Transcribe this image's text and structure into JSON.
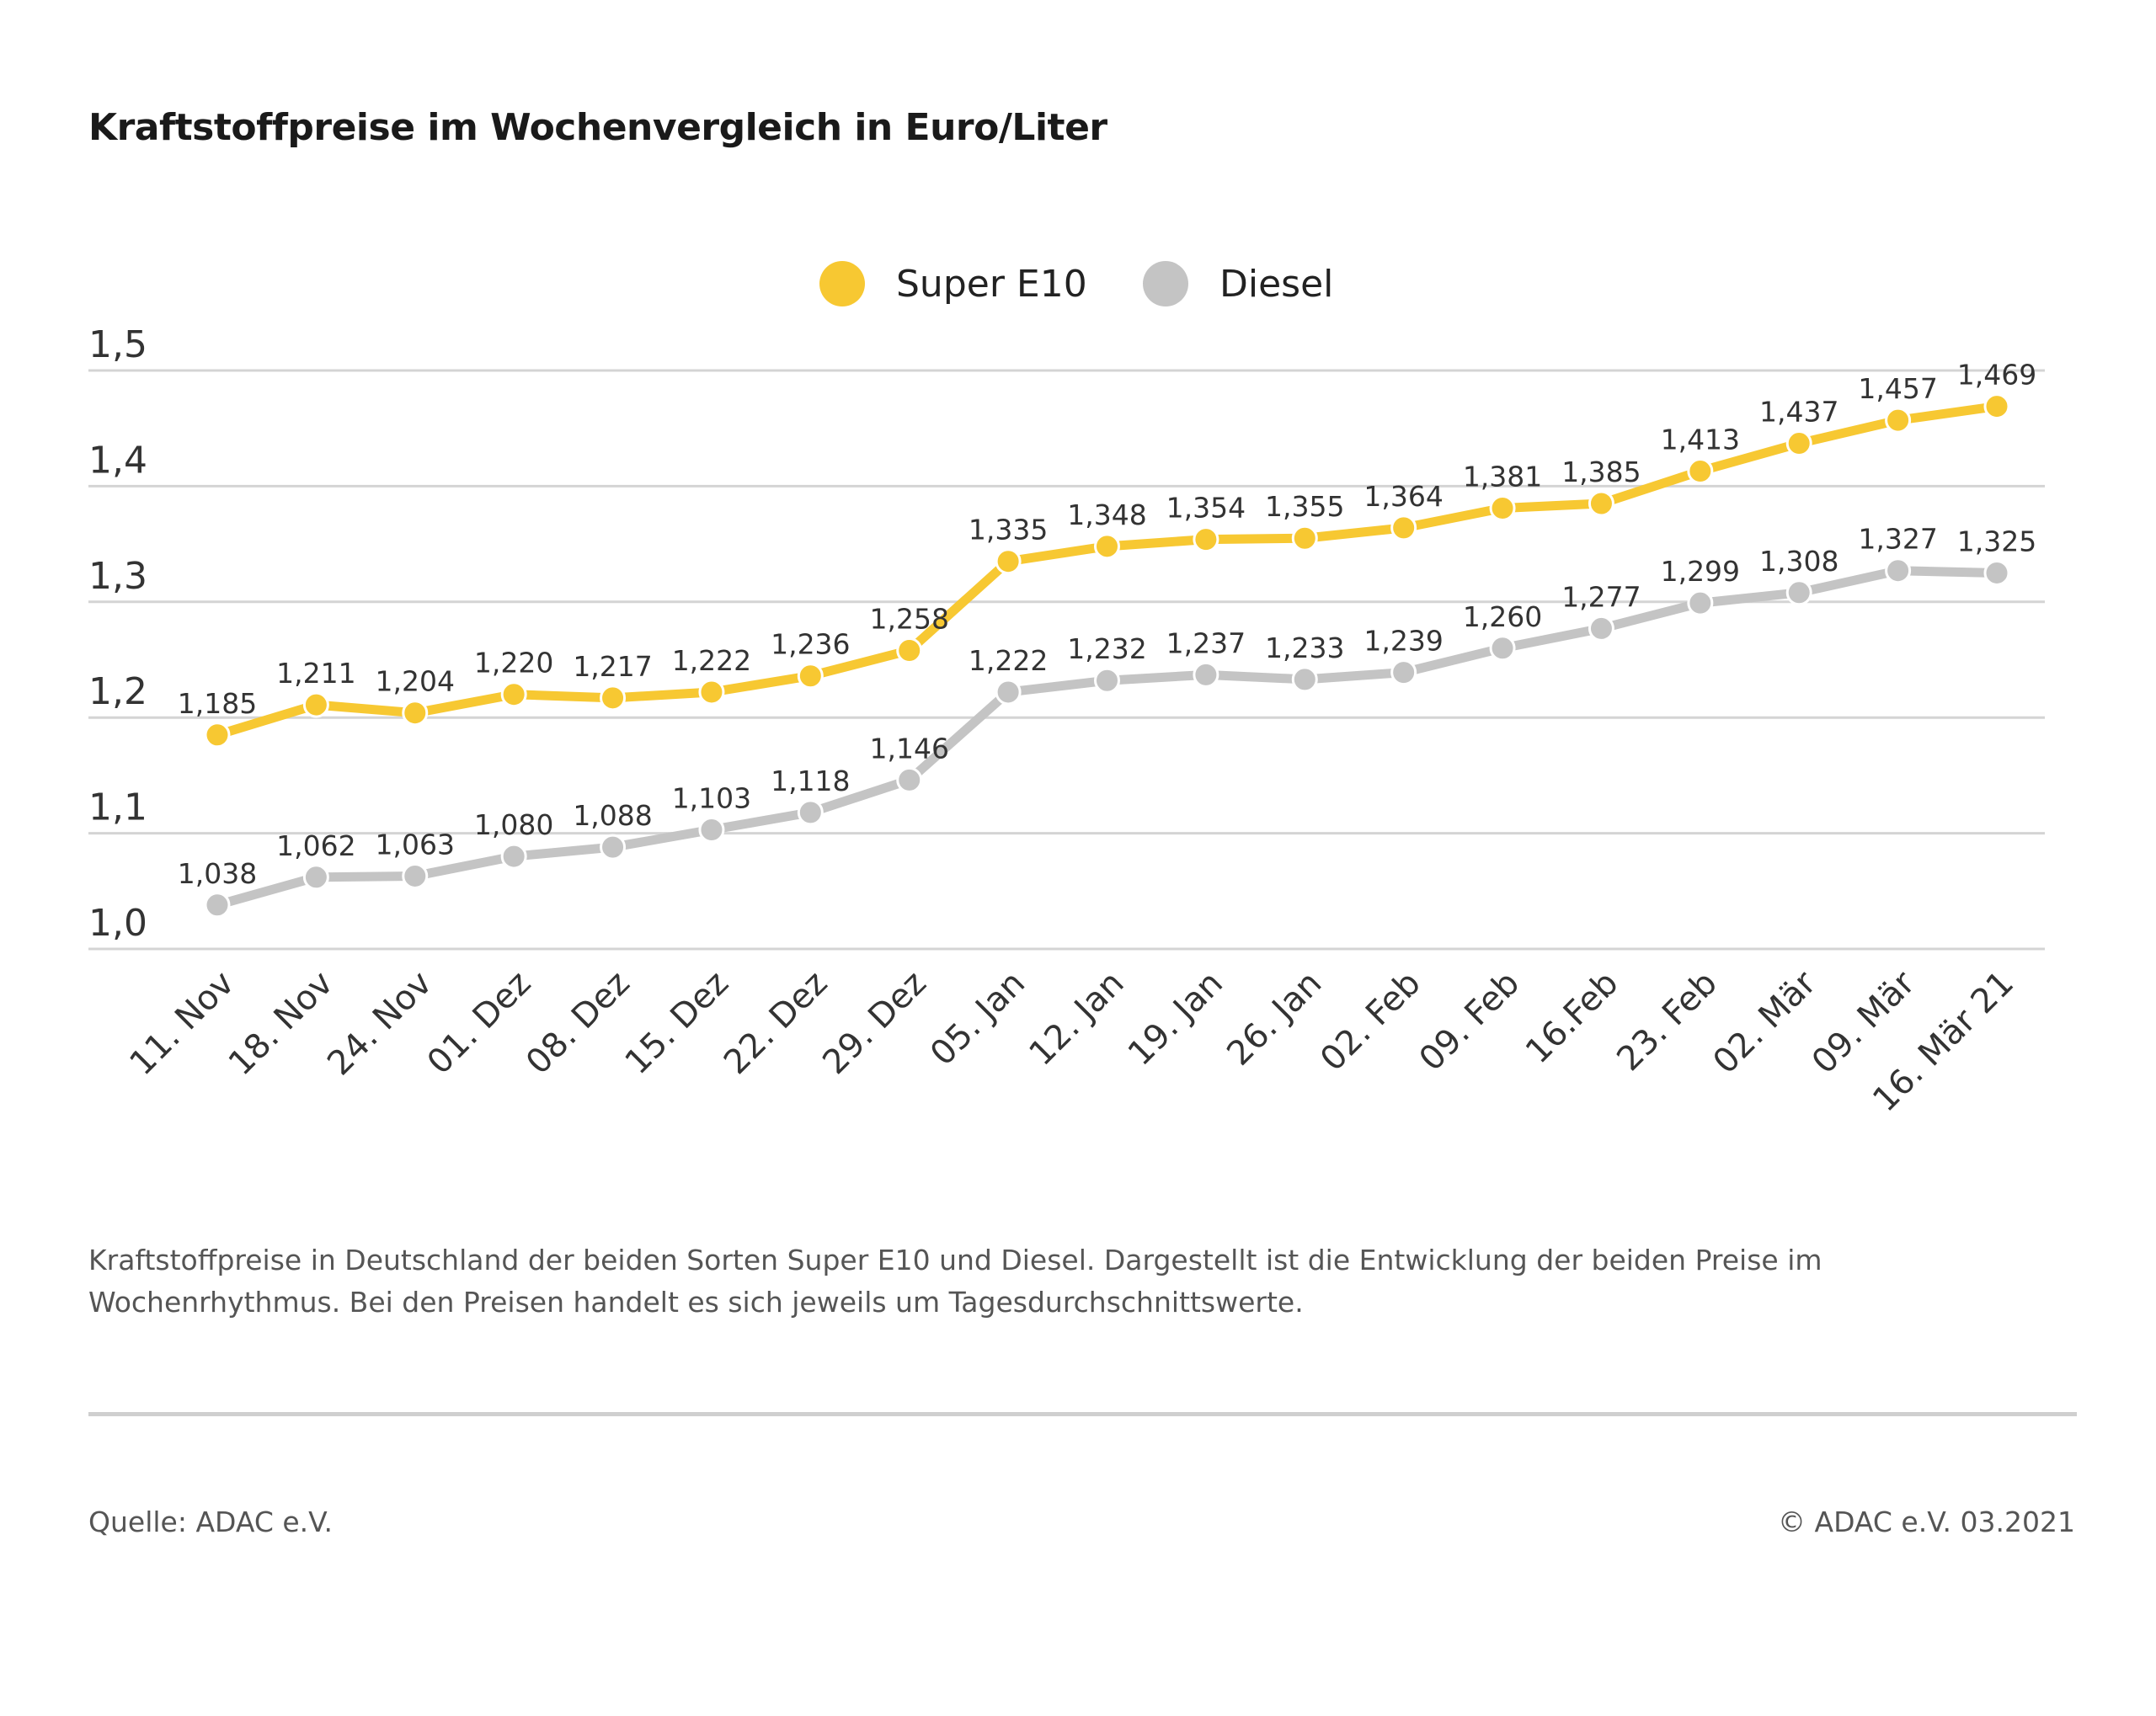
{
  "title": "Kraftstoffpreise im Wochenvergleich in Euro/Liter",
  "description": "Kraftstoffpreise in Deutschland der beiden Sorten Super E10 und Diesel. Dargestellt ist die Entwicklung der beiden Preise im Wochenrhythmus. Bei den Preisen handelt es sich jeweils um Tagesdurchschnittswerte.",
  "source": "Quelle: ADAC e.V.",
  "copyright": "© ADAC e.V. 03.2021",
  "chart_data": {
    "type": "line",
    "title": "Kraftstoffpreise im Wochenvergleich in Euro/Liter",
    "xlabel": "",
    "ylabel": "",
    "ylim": [
      1.0,
      1.5
    ],
    "yticks": [
      "1,0",
      "1,1",
      "1,2",
      "1,3",
      "1,4",
      "1,5"
    ],
    "grid": true,
    "legend_position": "top-center",
    "categories": [
      "11. Nov",
      "18. Nov",
      "24. Nov",
      "01. Dez",
      "08. Dez",
      "15. Dez",
      "22. Dez",
      "29. Dez",
      "05. Jan",
      "12. Jan",
      "19. Jan",
      "26. Jan",
      "02. Feb",
      "09. Feb",
      "16.Feb",
      "23. Feb",
      "02. Mär",
      "09. Mär",
      "16. Mär 21"
    ],
    "series": [
      {
        "name": "Super E10",
        "color": "#F7C832",
        "values": [
          1.185,
          1.211,
          1.204,
          1.22,
          1.217,
          1.222,
          1.236,
          1.258,
          1.335,
          1.348,
          1.354,
          1.355,
          1.364,
          1.381,
          1.385,
          1.413,
          1.437,
          1.457,
          1.469
        ],
        "labels": [
          "1,185",
          "1,211",
          "1,204",
          "1,220",
          "1,217",
          "1,222",
          "1,236",
          "1,258",
          "1,335",
          "1,348",
          "1,354",
          "1,355",
          "1,364",
          "1,381",
          "1,385",
          "1,413",
          "1,437",
          "1,457",
          "1,469"
        ]
      },
      {
        "name": "Diesel",
        "color": "#C4C4C4",
        "values": [
          1.038,
          1.062,
          1.063,
          1.08,
          1.088,
          1.103,
          1.118,
          1.146,
          1.222,
          1.232,
          1.237,
          1.233,
          1.239,
          1.26,
          1.277,
          1.299,
          1.308,
          1.327,
          1.325
        ],
        "labels": [
          "1,038",
          "1,062",
          "1,063",
          "1,080",
          "1,088",
          "1,103",
          "1,118",
          "1,146",
          "1,222",
          "1,232",
          "1,237",
          "1,233",
          "1,239",
          "1,260",
          "1,277",
          "1,299",
          "1,308",
          "1,327",
          "1,325"
        ]
      }
    ]
  }
}
